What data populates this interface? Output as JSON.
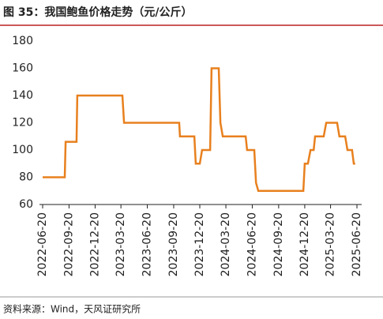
{
  "chart_data": {
    "type": "line",
    "title": "图 35：我国鲍鱼价格走势（元/公斤）",
    "source": "资料来源：Wind，天风证研究所",
    "x": [
      "2022-06-20",
      "2022-09-05",
      "2022-09-08",
      "2022-10-16",
      "2022-10-19",
      "2023-03-25",
      "2023-03-31",
      "2023-10-09",
      "2023-10-12",
      "2023-12-01",
      "2023-12-06",
      "2023-12-20",
      "2023-12-28",
      "2024-01-25",
      "2024-01-30",
      "2024-02-24",
      "2024-03-01",
      "2024-03-09",
      "2024-05-28",
      "2024-06-02",
      "2024-06-27",
      "2024-07-03",
      "2024-07-11",
      "2024-12-15",
      "2024-12-20",
      "2024-12-31",
      "2025-01-09",
      "2025-01-20",
      "2025-01-25",
      "2025-02-24",
      "2025-03-05",
      "2025-04-12",
      "2025-04-20",
      "2025-05-10",
      "2025-05-18",
      "2025-06-03",
      "2025-06-09",
      "2025-06-14"
    ],
    "series": [
      {
        "name": "鲍鱼价格",
        "color": "#e8801e",
        "values": [
          80,
          80,
          106,
          106,
          140,
          140,
          120,
          120,
          110,
          110,
          90,
          90,
          100,
          100,
          160,
          160,
          120,
          110,
          110,
          100,
          100,
          76,
          70,
          70,
          90,
          90,
          100,
          100,
          110,
          110,
          120,
          120,
          110,
          110,
          100,
          100,
          90,
          90
        ]
      }
    ],
    "xlim": [
      "2022-06-20",
      "2025-06-20"
    ],
    "xticks": [
      "2022-06-20",
      "2022-09-20",
      "2022-12-20",
      "2023-03-20",
      "2023-06-20",
      "2023-09-20",
      "2023-12-20",
      "2024-03-20",
      "2024-06-20",
      "2024-09-20",
      "2024-12-20",
      "2025-03-20",
      "2025-06-20"
    ],
    "ylim": [
      60,
      180
    ],
    "yticks": [
      60,
      80,
      100,
      120,
      140,
      160,
      180
    ]
  }
}
